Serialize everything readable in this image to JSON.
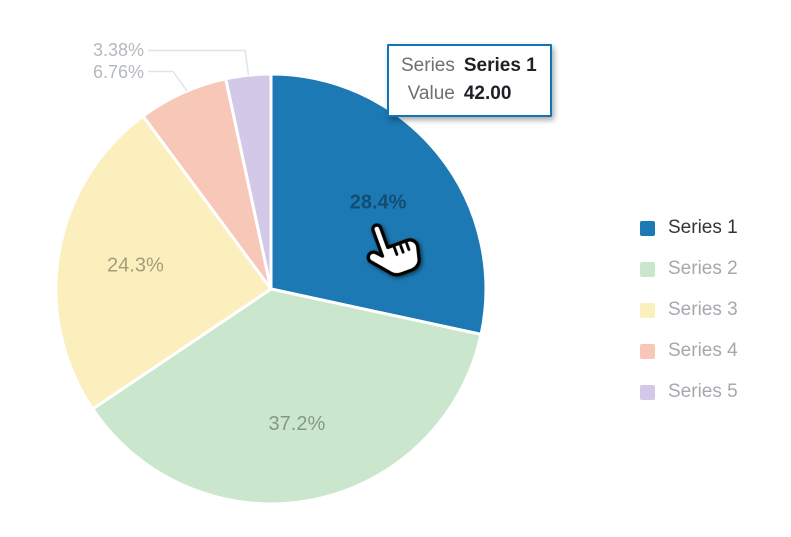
{
  "chart_data": {
    "type": "pie",
    "title": "",
    "start_angle": "top",
    "direction": "clockwise",
    "legend_position": "right",
    "background": "#ffffff",
    "hovered_slice": "Series 1",
    "slices": [
      {
        "name": "Series 1",
        "percent": 28.4,
        "percent_label": "28.4%",
        "color": "#1C79B3",
        "label_placement": "inside",
        "label_color": "#ffffff",
        "label_bold": true,
        "hovered": true
      },
      {
        "name": "Series 2",
        "percent": 37.2,
        "percent_label": "37.2%",
        "color": "#CAE7CE",
        "label_placement": "inside"
      },
      {
        "name": "Series 3",
        "percent": 24.3,
        "percent_label": "24.3%",
        "color": "#FCEFBE",
        "label_placement": "inside"
      },
      {
        "name": "Series 4",
        "percent": 6.76,
        "percent_label": "6.76%",
        "color": "#F7C7B8",
        "label_placement": "outside"
      },
      {
        "name": "Series 5",
        "percent": 3.38,
        "percent_label": "3.38%",
        "color": "#D4C8E9",
        "label_placement": "outside"
      }
    ]
  },
  "legend": {
    "items": [
      {
        "label": "Series 1",
        "active": true
      },
      {
        "label": "Series 2",
        "active": false
      },
      {
        "label": "Series 3",
        "active": false
      },
      {
        "label": "Series 4",
        "active": false
      },
      {
        "label": "Series 5",
        "active": false
      }
    ]
  },
  "tooltip": {
    "border_color": "#1176B5",
    "rows": [
      {
        "label": "Series",
        "value": "Series 1"
      },
      {
        "label": "Value",
        "value": "42.00"
      }
    ]
  }
}
